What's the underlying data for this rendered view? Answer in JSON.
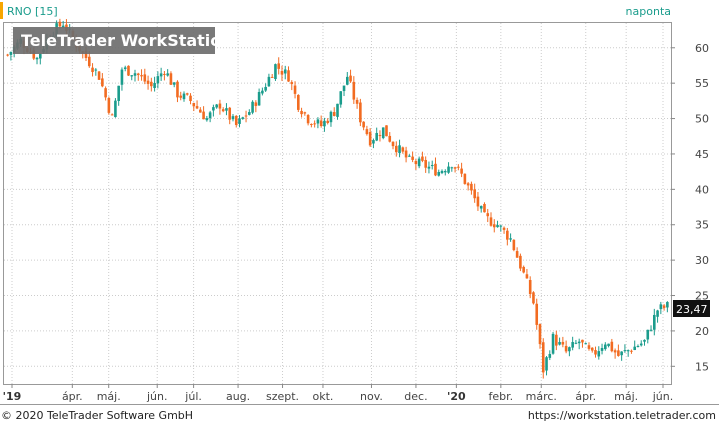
{
  "header": {
    "symbol": "RNO [15]",
    "period": "naponta"
  },
  "watermark": "TeleTrader WorkStation",
  "footer": {
    "copyright": "© 2020 TeleTrader Software GmbH",
    "url": "https://workstation.teletrader.com"
  },
  "last_price_label": "23,47",
  "colors": {
    "up": "#1a9c8c",
    "down": "#f26b21",
    "accent": "#f7a600",
    "grid": "#cccccc"
  },
  "chart_data": {
    "type": "candlestick",
    "title": "RNO [15]",
    "interval": "naponta",
    "xlabel": "",
    "ylabel": "",
    "x_axis_labels": [
      {
        "label": "'19",
        "bold": true
      },
      {
        "label": "ápr.",
        "bold": false
      },
      {
        "label": "máj.",
        "bold": false
      },
      {
        "label": "jún.",
        "bold": false
      },
      {
        "label": "júl.",
        "bold": false
      },
      {
        "label": "aug.",
        "bold": false
      },
      {
        "label": "szept.",
        "bold": false
      },
      {
        "label": "okt.",
        "bold": false
      },
      {
        "label": "nov.",
        "bold": false
      },
      {
        "label": "dec.",
        "bold": false
      },
      {
        "label": "'20",
        "bold": true
      },
      {
        "label": "febr.",
        "bold": false
      },
      {
        "label": "márc.",
        "bold": false
      },
      {
        "label": "ápr.",
        "bold": false
      },
      {
        "label": "máj.",
        "bold": false
      },
      {
        "label": "jún.",
        "bold": false
      }
    ],
    "y_ticks": [
      15,
      20,
      25,
      30,
      35,
      40,
      45,
      50,
      55,
      60
    ],
    "y_tick_labels": [
      "15",
      "20",
      "25",
      "30",
      "35",
      "40",
      "45",
      "50",
      "55",
      "60"
    ],
    "ylim": [
      12.5,
      63.5
    ],
    "grid": true,
    "last_price": 23.47,
    "price_path": [
      [
        0,
        59.0
      ],
      [
        4,
        61.0
      ],
      [
        9,
        58.5
      ],
      [
        13,
        62.0
      ],
      [
        17,
        63.5
      ],
      [
        21,
        60.5
      ],
      [
        25,
        58.0
      ],
      [
        28,
        56.0
      ],
      [
        32,
        50.0
      ],
      [
        35,
        57.0
      ],
      [
        39,
        56.5
      ],
      [
        44,
        54.5
      ],
      [
        48,
        57.0
      ],
      [
        52,
        53.5
      ],
      [
        56,
        52.5
      ],
      [
        61,
        50.0
      ],
      [
        65,
        52.0
      ],
      [
        70,
        49.0
      ],
      [
        74,
        51.0
      ],
      [
        78,
        54.0
      ],
      [
        82,
        57.5
      ],
      [
        86,
        56.0
      ],
      [
        89,
        52.0
      ],
      [
        92,
        50.0
      ],
      [
        96,
        49.0
      ],
      [
        100,
        51.0
      ],
      [
        104,
        56.0
      ],
      [
        108,
        50.0
      ],
      [
        111,
        47.0
      ],
      [
        115,
        48.5
      ],
      [
        118,
        46.5
      ],
      [
        123,
        44.0
      ],
      [
        127,
        43.5
      ],
      [
        132,
        42.5
      ],
      [
        136,
        43.8
      ],
      [
        139,
        42.0
      ],
      [
        142,
        39.5
      ],
      [
        146,
        36.0
      ],
      [
        150,
        35.0
      ],
      [
        154,
        33.0
      ],
      [
        158,
        28.0
      ],
      [
        161,
        24.0
      ],
      [
        164,
        14.5
      ],
      [
        167,
        19.0
      ],
      [
        171,
        17.0
      ],
      [
        175,
        18.5
      ],
      [
        179,
        16.5
      ],
      [
        183,
        18.5
      ],
      [
        187,
        16.5
      ],
      [
        191,
        17.5
      ],
      [
        195,
        18.5
      ],
      [
        199,
        23.0
      ],
      [
        202,
        23.47
      ]
    ]
  }
}
